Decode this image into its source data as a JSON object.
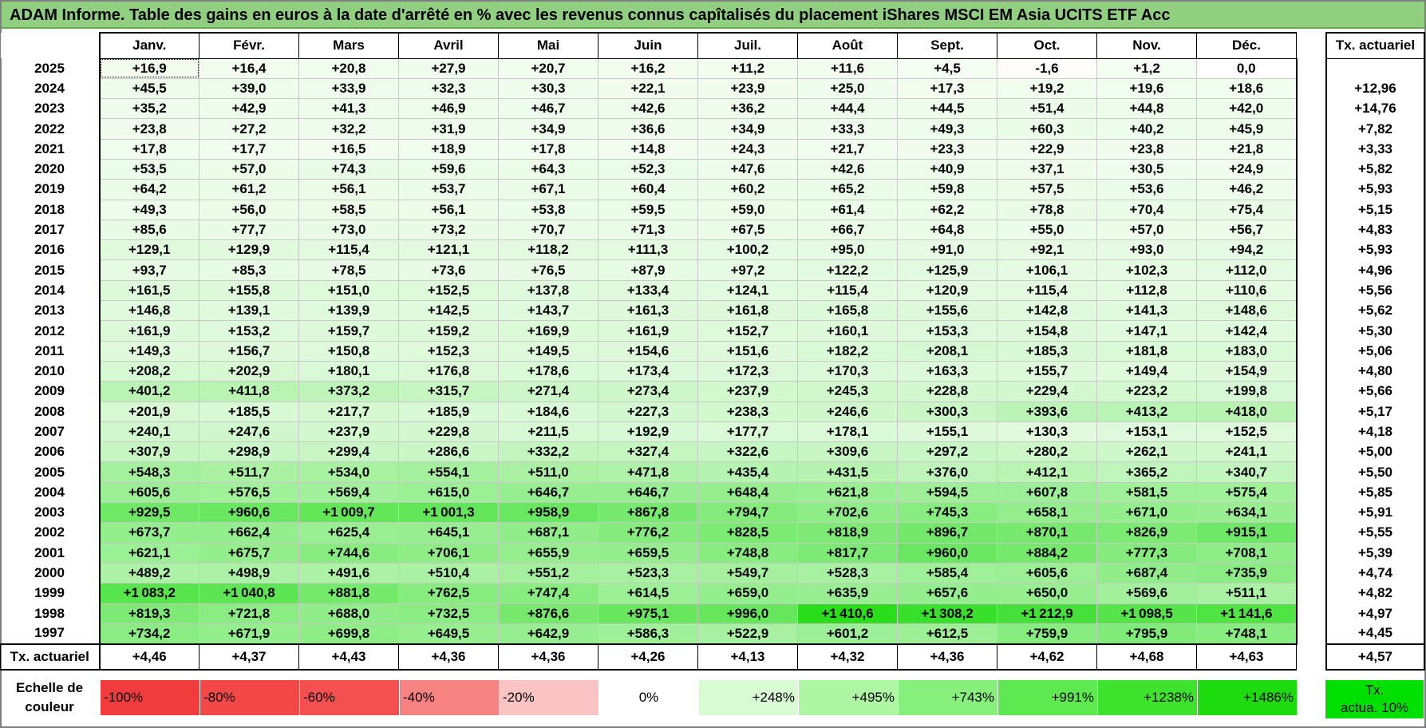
{
  "title": "ADAM Informe. Table des gains en euros à la date d'arrêté en % avec les revenus connus capîtalisés du placement iShares MSCI EM Asia UCITS ETF Acc",
  "months": [
    "Janv.",
    "Févr.",
    "Mars",
    "Avril",
    "Mai",
    "Juin",
    "Juil.",
    "Août",
    "Sept.",
    "Oct.",
    "Nov.",
    "Déc."
  ],
  "actuarial_header": "Tx. actuariel",
  "rows": [
    {
      "year": "2025",
      "values": [
        16.9,
        16.4,
        20.8,
        27.9,
        20.7,
        16.2,
        11.2,
        11.6,
        4.5,
        -1.6,
        1.2,
        0.0
      ],
      "rate": ""
    },
    {
      "year": "2024",
      "values": [
        45.5,
        39.0,
        33.9,
        32.3,
        30.3,
        22.1,
        23.9,
        25.0,
        17.3,
        19.2,
        19.6,
        18.6
      ],
      "rate": "+12,96"
    },
    {
      "year": "2023",
      "values": [
        35.2,
        42.9,
        41.3,
        46.9,
        46.7,
        42.6,
        36.2,
        44.4,
        44.5,
        51.4,
        44.8,
        42.0
      ],
      "rate": "+14,76"
    },
    {
      "year": "2022",
      "values": [
        23.8,
        27.2,
        32.2,
        31.9,
        34.9,
        36.6,
        34.9,
        33.3,
        49.3,
        60.3,
        40.2,
        45.9
      ],
      "rate": "+7,82"
    },
    {
      "year": "2021",
      "values": [
        17.8,
        17.7,
        16.5,
        18.9,
        17.8,
        14.8,
        24.3,
        21.7,
        23.3,
        22.9,
        23.8,
        21.8
      ],
      "rate": "+3,33"
    },
    {
      "year": "2020",
      "values": [
        53.5,
        57.0,
        74.3,
        59.6,
        64.3,
        52.3,
        47.6,
        42.6,
        40.9,
        37.1,
        30.5,
        24.9
      ],
      "rate": "+5,82"
    },
    {
      "year": "2019",
      "values": [
        64.2,
        61.2,
        56.1,
        53.7,
        67.1,
        60.4,
        60.2,
        65.2,
        59.8,
        57.5,
        53.6,
        46.2
      ],
      "rate": "+5,93"
    },
    {
      "year": "2018",
      "values": [
        49.3,
        56.0,
        58.5,
        56.1,
        53.8,
        59.5,
        59.0,
        61.4,
        62.2,
        78.8,
        70.4,
        75.4
      ],
      "rate": "+5,15"
    },
    {
      "year": "2017",
      "values": [
        85.6,
        77.7,
        73.0,
        73.2,
        70.7,
        71.3,
        67.5,
        66.7,
        64.8,
        55.0,
        57.0,
        56.7
      ],
      "rate": "+4,83"
    },
    {
      "year": "2016",
      "values": [
        129.1,
        129.9,
        115.4,
        121.1,
        118.2,
        111.3,
        100.2,
        95.0,
        91.0,
        92.1,
        93.0,
        94.2
      ],
      "rate": "+5,93"
    },
    {
      "year": "2015",
      "values": [
        93.7,
        85.3,
        78.5,
        73.6,
        76.5,
        87.9,
        97.2,
        122.2,
        125.9,
        106.1,
        102.3,
        112.0
      ],
      "rate": "+4,96"
    },
    {
      "year": "2014",
      "values": [
        161.5,
        155.8,
        151.0,
        152.5,
        137.8,
        133.4,
        124.1,
        115.4,
        120.9,
        115.4,
        112.8,
        110.6
      ],
      "rate": "+5,56"
    },
    {
      "year": "2013",
      "values": [
        146.8,
        139.1,
        139.9,
        142.5,
        143.7,
        161.3,
        161.8,
        165.8,
        155.6,
        142.8,
        141.3,
        148.6
      ],
      "rate": "+5,62"
    },
    {
      "year": "2012",
      "values": [
        161.9,
        153.2,
        159.7,
        159.2,
        169.9,
        161.9,
        152.7,
        160.1,
        153.3,
        154.8,
        147.1,
        142.4
      ],
      "rate": "+5,30"
    },
    {
      "year": "2011",
      "values": [
        149.3,
        156.7,
        150.8,
        152.3,
        149.5,
        154.6,
        151.6,
        182.2,
        208.1,
        185.3,
        181.8,
        183.0
      ],
      "rate": "+5,06"
    },
    {
      "year": "2010",
      "values": [
        208.2,
        202.9,
        180.1,
        176.8,
        178.6,
        173.4,
        172.3,
        170.3,
        163.3,
        155.7,
        149.4,
        154.9
      ],
      "rate": "+4,80"
    },
    {
      "year": "2009",
      "values": [
        401.2,
        411.8,
        373.2,
        315.7,
        271.4,
        273.4,
        237.9,
        245.3,
        228.8,
        229.4,
        223.2,
        199.8
      ],
      "rate": "+5,66"
    },
    {
      "year": "2008",
      "values": [
        201.9,
        185.5,
        217.7,
        185.9,
        184.6,
        227.3,
        238.3,
        246.6,
        300.3,
        393.6,
        413.2,
        418.0
      ],
      "rate": "+5,17"
    },
    {
      "year": "2007",
      "values": [
        240.1,
        247.6,
        237.9,
        229.8,
        211.5,
        192.9,
        177.7,
        178.1,
        155.1,
        130.3,
        153.1,
        152.5
      ],
      "rate": "+4,18"
    },
    {
      "year": "2006",
      "values": [
        307.9,
        298.9,
        299.4,
        286.6,
        332.2,
        327.4,
        322.6,
        309.6,
        297.2,
        280.2,
        262.1,
        241.1
      ],
      "rate": "+5,00"
    },
    {
      "year": "2005",
      "values": [
        548.3,
        511.7,
        534.0,
        554.1,
        511.0,
        471.8,
        435.4,
        431.5,
        376.0,
        412.1,
        365.2,
        340.7
      ],
      "rate": "+5,50"
    },
    {
      "year": "2004",
      "values": [
        605.6,
        576.5,
        569.4,
        615.0,
        646.7,
        646.7,
        648.4,
        621.8,
        594.5,
        607.8,
        581.5,
        575.4
      ],
      "rate": "+5,85"
    },
    {
      "year": "2003",
      "values": [
        929.5,
        960.6,
        1009.7,
        1001.3,
        958.9,
        867.8,
        794.7,
        702.6,
        745.3,
        658.1,
        671.0,
        634.1
      ],
      "rate": "+5,91"
    },
    {
      "year": "2002",
      "values": [
        673.7,
        662.4,
        625.4,
        645.1,
        687.1,
        776.2,
        828.5,
        818.9,
        896.7,
        870.1,
        826.9,
        915.1
      ],
      "rate": "+5,55"
    },
    {
      "year": "2001",
      "values": [
        621.1,
        675.7,
        744.6,
        706.1,
        655.9,
        659.5,
        748.8,
        817.7,
        960.0,
        884.2,
        777.3,
        708.1
      ],
      "rate": "+5,39"
    },
    {
      "year": "2000",
      "values": [
        489.2,
        498.9,
        491.6,
        510.4,
        551.2,
        523.3,
        549.7,
        528.3,
        585.4,
        605.6,
        687.4,
        735.9
      ],
      "rate": "+4,74"
    },
    {
      "year": "1999",
      "values": [
        1083.2,
        1040.8,
        881.8,
        762.5,
        747.4,
        614.5,
        659.0,
        635.9,
        657.6,
        650.0,
        569.6,
        511.1
      ],
      "rate": "+4,82"
    },
    {
      "year": "1998",
      "values": [
        819.3,
        721.8,
        688.0,
        732.5,
        876.6,
        975.1,
        996.0,
        1410.6,
        1308.2,
        1212.9,
        1098.5,
        1141.6
      ],
      "rate": "+4,97"
    },
    {
      "year": "1997",
      "values": [
        734.2,
        671.9,
        699.8,
        649.5,
        642.9,
        586.3,
        522.9,
        601.2,
        612.5,
        759.9,
        795.9,
        748.1
      ],
      "rate": "+4,45"
    }
  ],
  "footer": {
    "label": "Tx. actuariel",
    "values": [
      "+4,46",
      "+4,37",
      "+4,43",
      "+4,36",
      "+4,36",
      "+4,26",
      "+4,13",
      "+4,32",
      "+4,36",
      "+4,62",
      "+4,68",
      "+4,63"
    ],
    "overall": "+4,57"
  },
  "scale": {
    "label_line1": "Echelle de",
    "label_line2": "couleur",
    "stops": [
      {
        "label": "-100%",
        "color": "#f03c3c"
      },
      {
        "label": "-80%",
        "color": "#f24848"
      },
      {
        "label": "-60%",
        "color": "#f45050"
      },
      {
        "label": "-40%",
        "color": "#f68282"
      },
      {
        "label": "-20%",
        "color": "#fbc4c4"
      },
      {
        "label": "0%",
        "color": "#ffffff"
      },
      {
        "label": "+248%",
        "color": "#d9fbd4"
      },
      {
        "label": "+495%",
        "color": "#aef5a4"
      },
      {
        "label": "+743%",
        "color": "#87ef7b"
      },
      {
        "label": "+991%",
        "color": "#5fe951"
      },
      {
        "label": "+1238%",
        "color": "#3ee32e"
      },
      {
        "label": "+1486%",
        "color": "#1edb10"
      }
    ],
    "actuarial_line1": "Tx.",
    "actuarial_line2": "actua. 10%",
    "actuarial_color": "#00e000"
  }
}
